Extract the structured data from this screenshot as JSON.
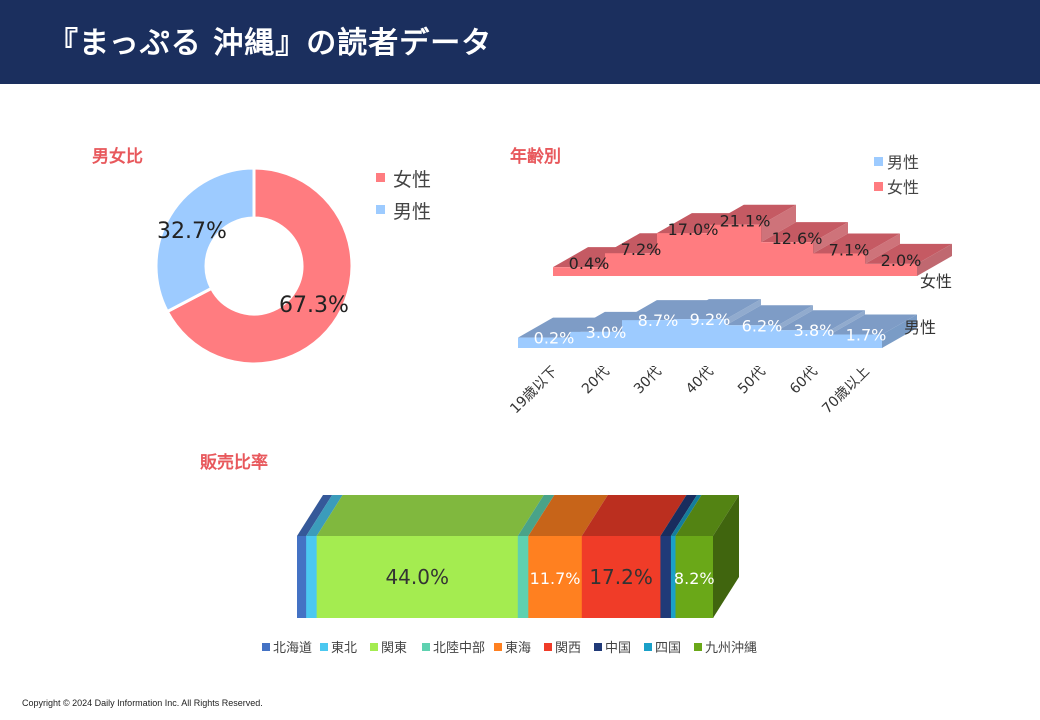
{
  "header": {
    "title": "『まっぷる 沖縄』の読者データ"
  },
  "colors": {
    "header_bg": "#1b2f5e",
    "section_title": "#e8585c",
    "female": "#ff7c80",
    "male": "#9dcbff"
  },
  "sections": {
    "gender": "男女比",
    "age": "年齢別",
    "sales": "販売比率"
  },
  "chart_data": [
    {
      "type": "pie",
      "title": "男女比",
      "categories": [
        "女性",
        "男性"
      ],
      "values": [
        67.3,
        32.7
      ],
      "labels": [
        "67.3%",
        "32.7%"
      ],
      "colors": [
        "#ff7c80",
        "#9dcbff"
      ],
      "legend": "right",
      "legend_items": [
        {
          "label": "女性",
          "color": "#ff7c80"
        },
        {
          "label": "男性",
          "color": "#9dcbff"
        }
      ]
    },
    {
      "type": "area",
      "title": "年齢別",
      "categories": [
        "19歳以下",
        "20代",
        "30代",
        "40代",
        "50代",
        "60代",
        "70歳以上"
      ],
      "series": [
        {
          "name": "男性",
          "values": [
            0.2,
            3.0,
            8.7,
            9.2,
            6.2,
            3.8,
            1.7
          ],
          "labels": [
            "0.2%",
            "3.0%",
            "8.7%",
            "9.2%",
            "6.2%",
            "3.8%",
            "1.7%"
          ],
          "color": "#9dcbff"
        },
        {
          "name": "女性",
          "values": [
            0.4,
            7.2,
            17.0,
            21.1,
            12.6,
            7.1,
            2.0
          ],
          "labels": [
            "0.4%",
            "7.2%",
            "17.0%",
            "21.1%",
            "12.6%",
            "7.1%",
            "2.0%"
          ],
          "color": "#ff7c80"
        }
      ],
      "depth_labels": [
        "女性",
        "男性"
      ],
      "legend": "top-right",
      "legend_items": [
        {
          "label": "男性",
          "color": "#9dcbff"
        },
        {
          "label": "女性",
          "color": "#ff7c80"
        }
      ]
    },
    {
      "type": "bar",
      "title": "販売比率",
      "stacked": true,
      "categories": [
        "北海道",
        "東北",
        "関東",
        "北陸中部",
        "東海",
        "関西",
        "中国",
        "四国",
        "九州沖縄"
      ],
      "values": [
        2.0,
        2.3,
        44.0,
        2.3,
        11.7,
        17.2,
        2.3,
        1.0,
        8.2
      ],
      "labels": [
        "",
        "",
        "44.0%",
        "",
        "11.7%",
        "17.2%",
        "",
        "",
        "8.2%"
      ],
      "colors": [
        "#4472c4",
        "#4bc8f0",
        "#a4ec50",
        "#5ed1b0",
        "#ff8020",
        "#f03c28",
        "#203a78",
        "#1aa0c8",
        "#6aa818"
      ],
      "legend": "bottom"
    }
  ],
  "footer": {
    "copyright": "Copyright © 2024 Daily Information Inc. All Rights Reserved."
  }
}
